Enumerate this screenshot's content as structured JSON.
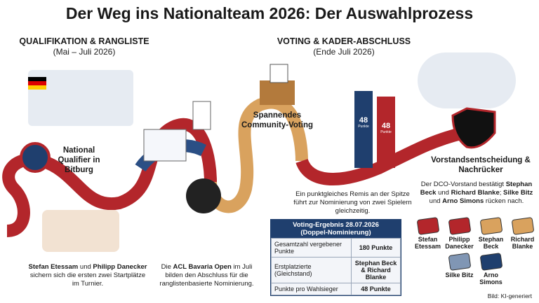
{
  "header": {
    "title": "Der Weg ins Nationalteam 2026: Der Auswahlprozess"
  },
  "sections": [
    {
      "title": "QUALIFIKATION & RANGLISTE",
      "period": "(Mai – Juli 2026)"
    },
    {
      "title": "VOTING & KADER-ABSCHLUSS",
      "period": "(Ende Juli 2026)"
    }
  ],
  "stations": [
    "National Qualifier in Bitburg",
    "Spannendes Community-Voting",
    "Vorstandsentscheidung & Nachrücker"
  ],
  "bars": [
    {
      "label": "48",
      "unit": "Punkte",
      "color": "#1f3f6e"
    },
    {
      "label": "48",
      "unit": "Punkte",
      "color": "#b3262b"
    }
  ],
  "captions": [
    [
      {
        "text": "Stefan Etessam",
        "bold": true
      },
      {
        "text": " und ",
        "bold": false
      },
      {
        "text": "Philipp Danecker",
        "bold": true
      },
      {
        "text": " sichern sich die ersten zwei Startplätze im Turnier.",
        "bold": false
      }
    ],
    [
      {
        "text": "Die ",
        "bold": false
      },
      {
        "text": "ACL Bavaria Open",
        "bold": true
      },
      {
        "text": " im Juli bilden den Abschluss für die ranglistenbasierte Nominierung.",
        "bold": false
      }
    ],
    [
      {
        "text": "Ein punktgleiches Remis an der Spitze führt zur Nominierung von zwei Spielern gleichzeitig.",
        "bold": false
      }
    ],
    [
      {
        "text": "Der DCO-Vorstand bestätigt ",
        "bold": false
      },
      {
        "text": "Stephan Beck",
        "bold": true
      },
      {
        "text": " und ",
        "bold": false
      },
      {
        "text": "Richard Blanke",
        "bold": true
      },
      {
        "text": "; ",
        "bold": false
      },
      {
        "text": "Silke Bitz",
        "bold": true
      },
      {
        "text": " und ",
        "bold": false
      },
      {
        "text": "Arno Simons",
        "bold": true
      },
      {
        "text": " rücken nach.",
        "bold": false
      }
    ]
  ],
  "table": {
    "title": "Voting-Ergebnis 28.07.2026",
    "subtitle": "(Doppel-Nominierung)",
    "rows": [
      [
        "Gesamtzahl vergebener Punkte",
        "180 Punkte"
      ],
      [
        "Erstplatzierte (Gleichstand)",
        "Stephan Beck & Richard Blanke"
      ],
      [
        "Punkte pro Wahlsieger",
        "48 Punkte"
      ]
    ]
  },
  "players": [
    {
      "name": "Stefan Etessam",
      "color": "#b3262b"
    },
    {
      "name": "Philipp Danecker",
      "color": "#b3262b"
    },
    {
      "name": "Stephan Beck",
      "color": "#d9a25e"
    },
    {
      "name": "Richard Blanke",
      "color": "#d9a25e"
    },
    {
      "name": "Silke Bitz",
      "color": "#8096b4"
    },
    {
      "name": "Arno Simons",
      "color": "#1f3f6e"
    }
  ],
  "credit": "Bild: KI-generiert"
}
